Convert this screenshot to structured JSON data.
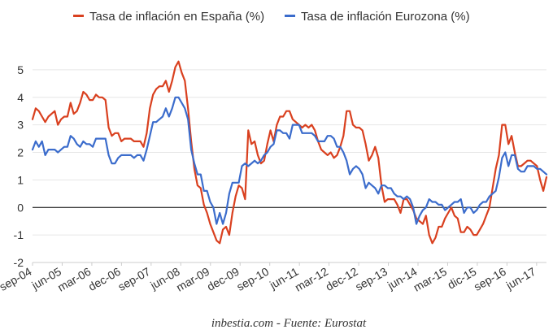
{
  "chart_data": {
    "type": "line",
    "title": "",
    "xlabel": "",
    "ylabel": "",
    "ylim": [
      -2,
      6
    ],
    "yticks": [
      -2,
      -1,
      0,
      1,
      2,
      3,
      4,
      5
    ],
    "legend_position": "top-center",
    "grid": "horizontal",
    "source": "inbestia.com - Fuente: Eurostat",
    "x_ticks": [
      "sep-04",
      "jun-05",
      "mar-06",
      "dec-06",
      "sep-07",
      "jun-08",
      "mar-09",
      "dec-09",
      "sep-10",
      "jun-11",
      "mar-12",
      "dec-12",
      "sep-13",
      "jun-14",
      "mar-15",
      "dic-15",
      "sep-16",
      "jun-17"
    ],
    "x_start": "2004-09",
    "x_end": "2017-09",
    "series": [
      {
        "name": "Tasa de inflación en España (%)",
        "color": "#d9401f",
        "values": [
          3.2,
          3.6,
          3.5,
          3.3,
          3.1,
          3.3,
          3.4,
          3.5,
          3.0,
          3.2,
          3.3,
          3.3,
          3.8,
          3.4,
          3.5,
          3.8,
          4.2,
          4.1,
          3.9,
          3.9,
          4.1,
          4.0,
          4.0,
          3.9,
          2.9,
          2.6,
          2.7,
          2.7,
          2.4,
          2.5,
          2.5,
          2.5,
          2.4,
          2.4,
          2.4,
          2.2,
          2.7,
          3.6,
          4.1,
          4.3,
          4.4,
          4.4,
          4.6,
          4.2,
          4.6,
          5.1,
          5.3,
          4.9,
          4.6,
          3.6,
          2.4,
          1.4,
          0.8,
          0.7,
          0.1,
          -0.2,
          -0.6,
          -0.9,
          -1.2,
          -1.3,
          -0.8,
          -0.7,
          -1.0,
          -0.2,
          0.4,
          0.8,
          0.7,
          0.3,
          2.8,
          2.3,
          2.4,
          1.9,
          1.6,
          1.7,
          2.3,
          2.8,
          2.4,
          3.0,
          3.3,
          3.3,
          3.5,
          3.5,
          3.2,
          3.1,
          3.0,
          2.9,
          3.0,
          2.9,
          3.0,
          2.8,
          2.4,
          2.1,
          2.0,
          1.9,
          2.0,
          1.8,
          1.9,
          2.2,
          2.6,
          3.5,
          3.5,
          3.0,
          2.9,
          2.9,
          2.8,
          2.3,
          1.7,
          1.9,
          2.2,
          1.8,
          0.8,
          0.2,
          0.3,
          0.3,
          0.3,
          0.1,
          -0.2,
          0.3,
          0.3,
          0.1,
          -0.1,
          -0.4,
          -0.5,
          -0.6,
          -0.3,
          -1.0,
          -1.3,
          -1.1,
          -0.7,
          -0.7,
          -0.4,
          -0.2,
          0.0,
          -0.3,
          -0.4,
          -0.9,
          -0.9,
          -0.7,
          -0.8,
          -1.0,
          -1.0,
          -0.8,
          -0.6,
          -0.3,
          0.0,
          0.7,
          1.4,
          1.9,
          3.0,
          3.0,
          2.3,
          2.6,
          2.0,
          1.5,
          1.5,
          1.6,
          1.7,
          1.7,
          1.6,
          1.5,
          1.0,
          0.6,
          1.1
        ]
      },
      {
        "name": "Tasa de inflación Eurozona (%)",
        "color": "#3b6ccc",
        "values": [
          2.1,
          2.4,
          2.2,
          2.4,
          1.9,
          2.1,
          2.1,
          2.1,
          2.0,
          2.1,
          2.2,
          2.2,
          2.6,
          2.5,
          2.3,
          2.2,
          2.4,
          2.3,
          2.3,
          2.2,
          2.5,
          2.5,
          2.5,
          2.5,
          1.9,
          1.6,
          1.6,
          1.8,
          1.9,
          1.9,
          1.9,
          1.9,
          1.8,
          1.9,
          1.9,
          1.7,
          2.1,
          2.6,
          3.1,
          3.1,
          3.2,
          3.3,
          3.6,
          3.3,
          3.6,
          4.0,
          4.0,
          3.8,
          3.6,
          3.2,
          2.1,
          1.6,
          1.2,
          1.2,
          0.6,
          0.6,
          0.2,
          0.0,
          -0.6,
          -0.2,
          -0.6,
          -0.2,
          0.5,
          0.9,
          0.9,
          0.9,
          1.5,
          1.6,
          1.5,
          1.6,
          1.7,
          1.6,
          1.7,
          1.9,
          2.0,
          2.2,
          2.3,
          2.8,
          2.8,
          2.7,
          2.7,
          2.5,
          3.0,
          3.0,
          3.0,
          2.7,
          2.7,
          2.7,
          2.7,
          2.6,
          2.4,
          2.4,
          2.4,
          2.6,
          2.6,
          2.5,
          2.2,
          2.2,
          2.0,
          1.7,
          1.2,
          1.4,
          1.5,
          1.4,
          1.2,
          0.7,
          0.9,
          0.8,
          0.7,
          0.5,
          0.8,
          0.8,
          0.7,
          0.7,
          0.5,
          0.4,
          0.4,
          0.3,
          0.4,
          0.3,
          0.0,
          -0.6,
          -0.3,
          -0.1,
          0.0,
          0.3,
          0.2,
          0.2,
          0.1,
          0.1,
          -0.1,
          0.0,
          0.1,
          0.2,
          0.2,
          0.3,
          -0.2,
          0.0,
          0.0,
          -0.2,
          -0.1,
          0.1,
          0.2,
          0.2,
          0.4,
          0.5,
          0.6,
          1.1,
          1.8,
          2.0,
          1.5,
          1.9,
          1.9,
          1.4,
          1.3,
          1.3,
          1.5,
          1.5,
          1.5,
          1.4,
          1.4,
          1.3,
          1.2
        ]
      }
    ]
  }
}
